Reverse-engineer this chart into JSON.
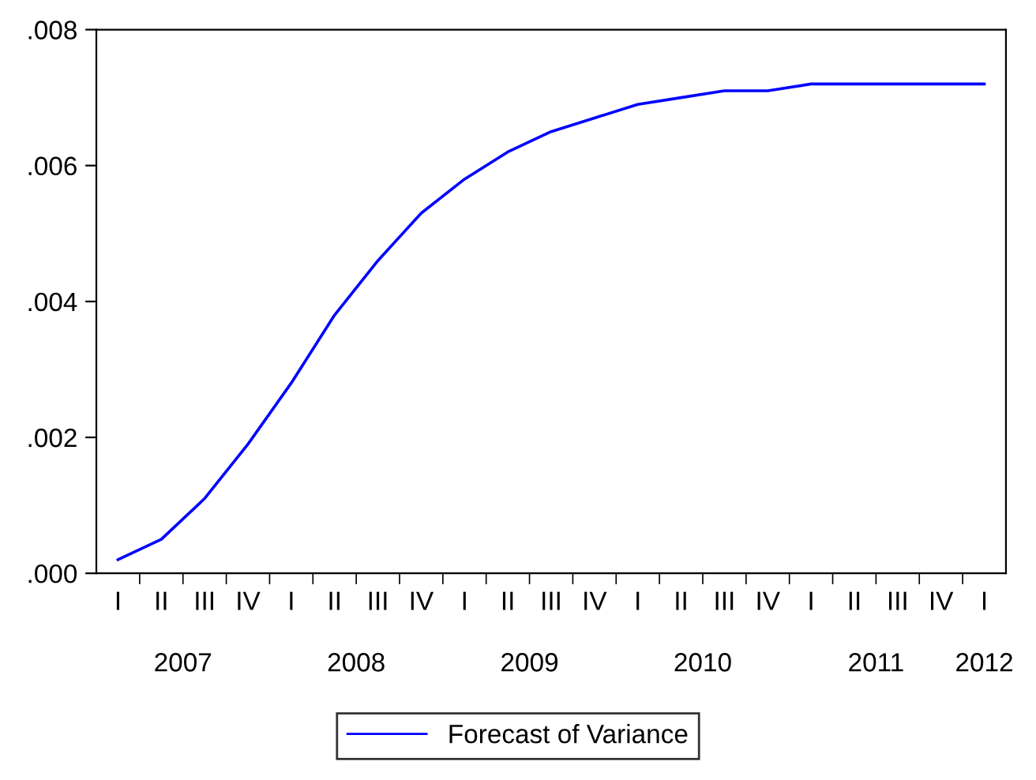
{
  "chart_data": {
    "type": "line",
    "categories": [
      "I",
      "II",
      "III",
      "IV",
      "I",
      "II",
      "III",
      "IV",
      "I",
      "II",
      "III",
      "IV",
      "I",
      "II",
      "III",
      "IV",
      "I",
      "II",
      "III",
      "IV",
      "I"
    ],
    "series": [
      {
        "name": "Forecast of Variance",
        "color": "#0000ff",
        "values": [
          0.0002,
          0.0005,
          0.0011,
          0.0019,
          0.0028,
          0.0038,
          0.0046,
          0.0053,
          0.0058,
          0.0062,
          0.0065,
          0.0067,
          0.0069,
          0.007,
          0.0071,
          0.0071,
          0.0072,
          0.0072,
          0.0072,
          0.0072,
          0.0072
        ]
      }
    ],
    "annotations": [
      "2007",
      "2008",
      "2009",
      "2010",
      "2011",
      "2012"
    ],
    "ylim": [
      0,
      0.008
    ],
    "yticks": [
      {
        "value": 0,
        "label": ".000"
      },
      {
        "value": 0.002,
        "label": ".002"
      },
      {
        "value": 0.004,
        "label": ".004"
      },
      {
        "value": 0.006,
        "label": ".006"
      },
      {
        "value": 0.008,
        "label": ".008"
      }
    ],
    "grid": false,
    "legend": "bottom",
    "line_style": "solid"
  }
}
